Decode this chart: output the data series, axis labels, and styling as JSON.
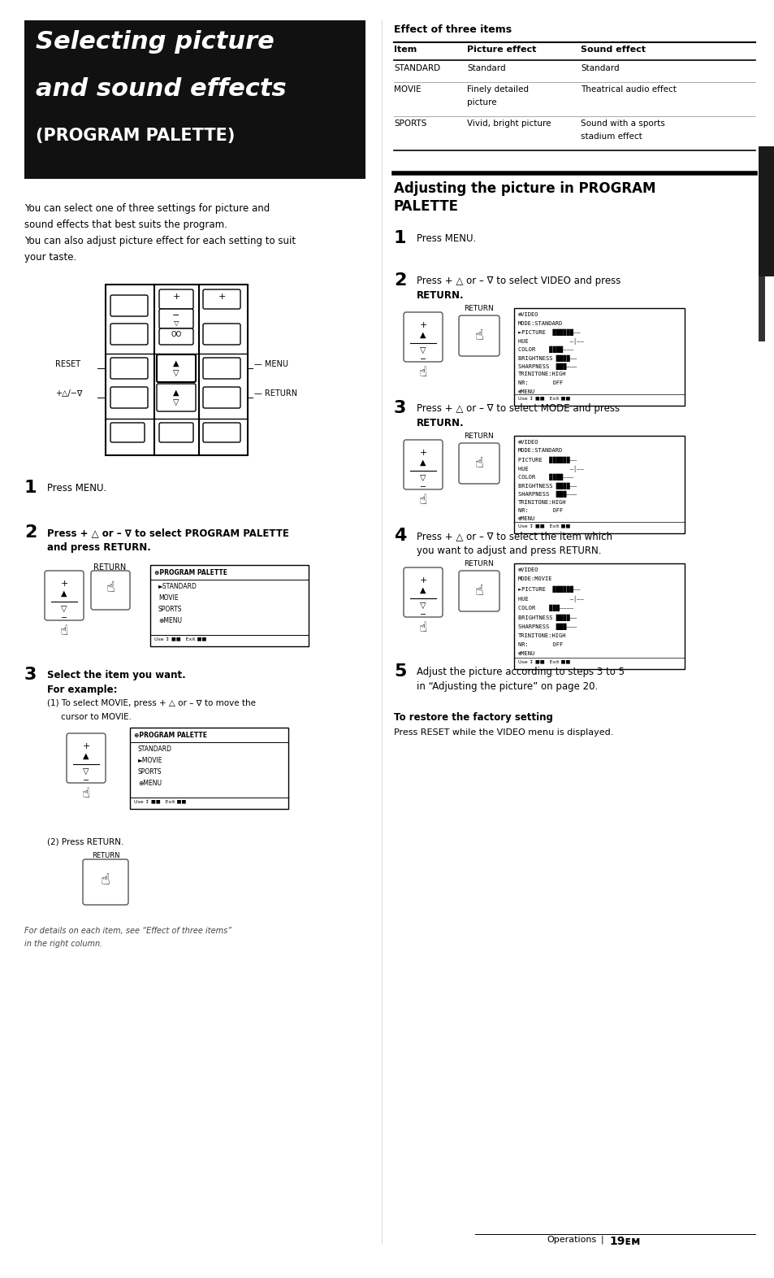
{
  "bg_color": "#ffffff",
  "page_width": 9.54,
  "page_height": 15.72,
  "dpi": 100,
  "title_bg": "#111111",
  "title_text_color": "#ffffff",
  "title_line1": "Selecting picture",
  "title_line2": "and sound effects",
  "title_line3": "(PROGRAM PALETTE)",
  "intro_text1": "You can select one of three settings for picture and",
  "intro_text2": "sound effects that best suits the program.",
  "intro_text3": "You can also adjust picture effect for each setting to suit",
  "intro_text4": "your taste.",
  "table_title": "Effect of three items",
  "table_headers": [
    "Item",
    "Picture effect",
    "Sound effect"
  ],
  "table_rows": [
    [
      "STANDARD",
      "Standard",
      "Standard"
    ],
    [
      "MOVIE",
      "Finely detailed\npicture",
      "Theatrical audio effect"
    ],
    [
      "SPORTS",
      "Vivid, bright picture",
      "Sound with a sports\nstadium effect"
    ]
  ],
  "section2_title1": "Adjusting the picture in PROGRAM",
  "section2_title2": "PALETTE",
  "restore_title": "To restore the factory setting",
  "restore_text": "Press RESET while the VIDEO menu is displayed.",
  "footer_text1": "For details on each item, see “Effect of three items”",
  "footer_text2": "in the right column.",
  "page_label": "Operations",
  "page_number": "19"
}
